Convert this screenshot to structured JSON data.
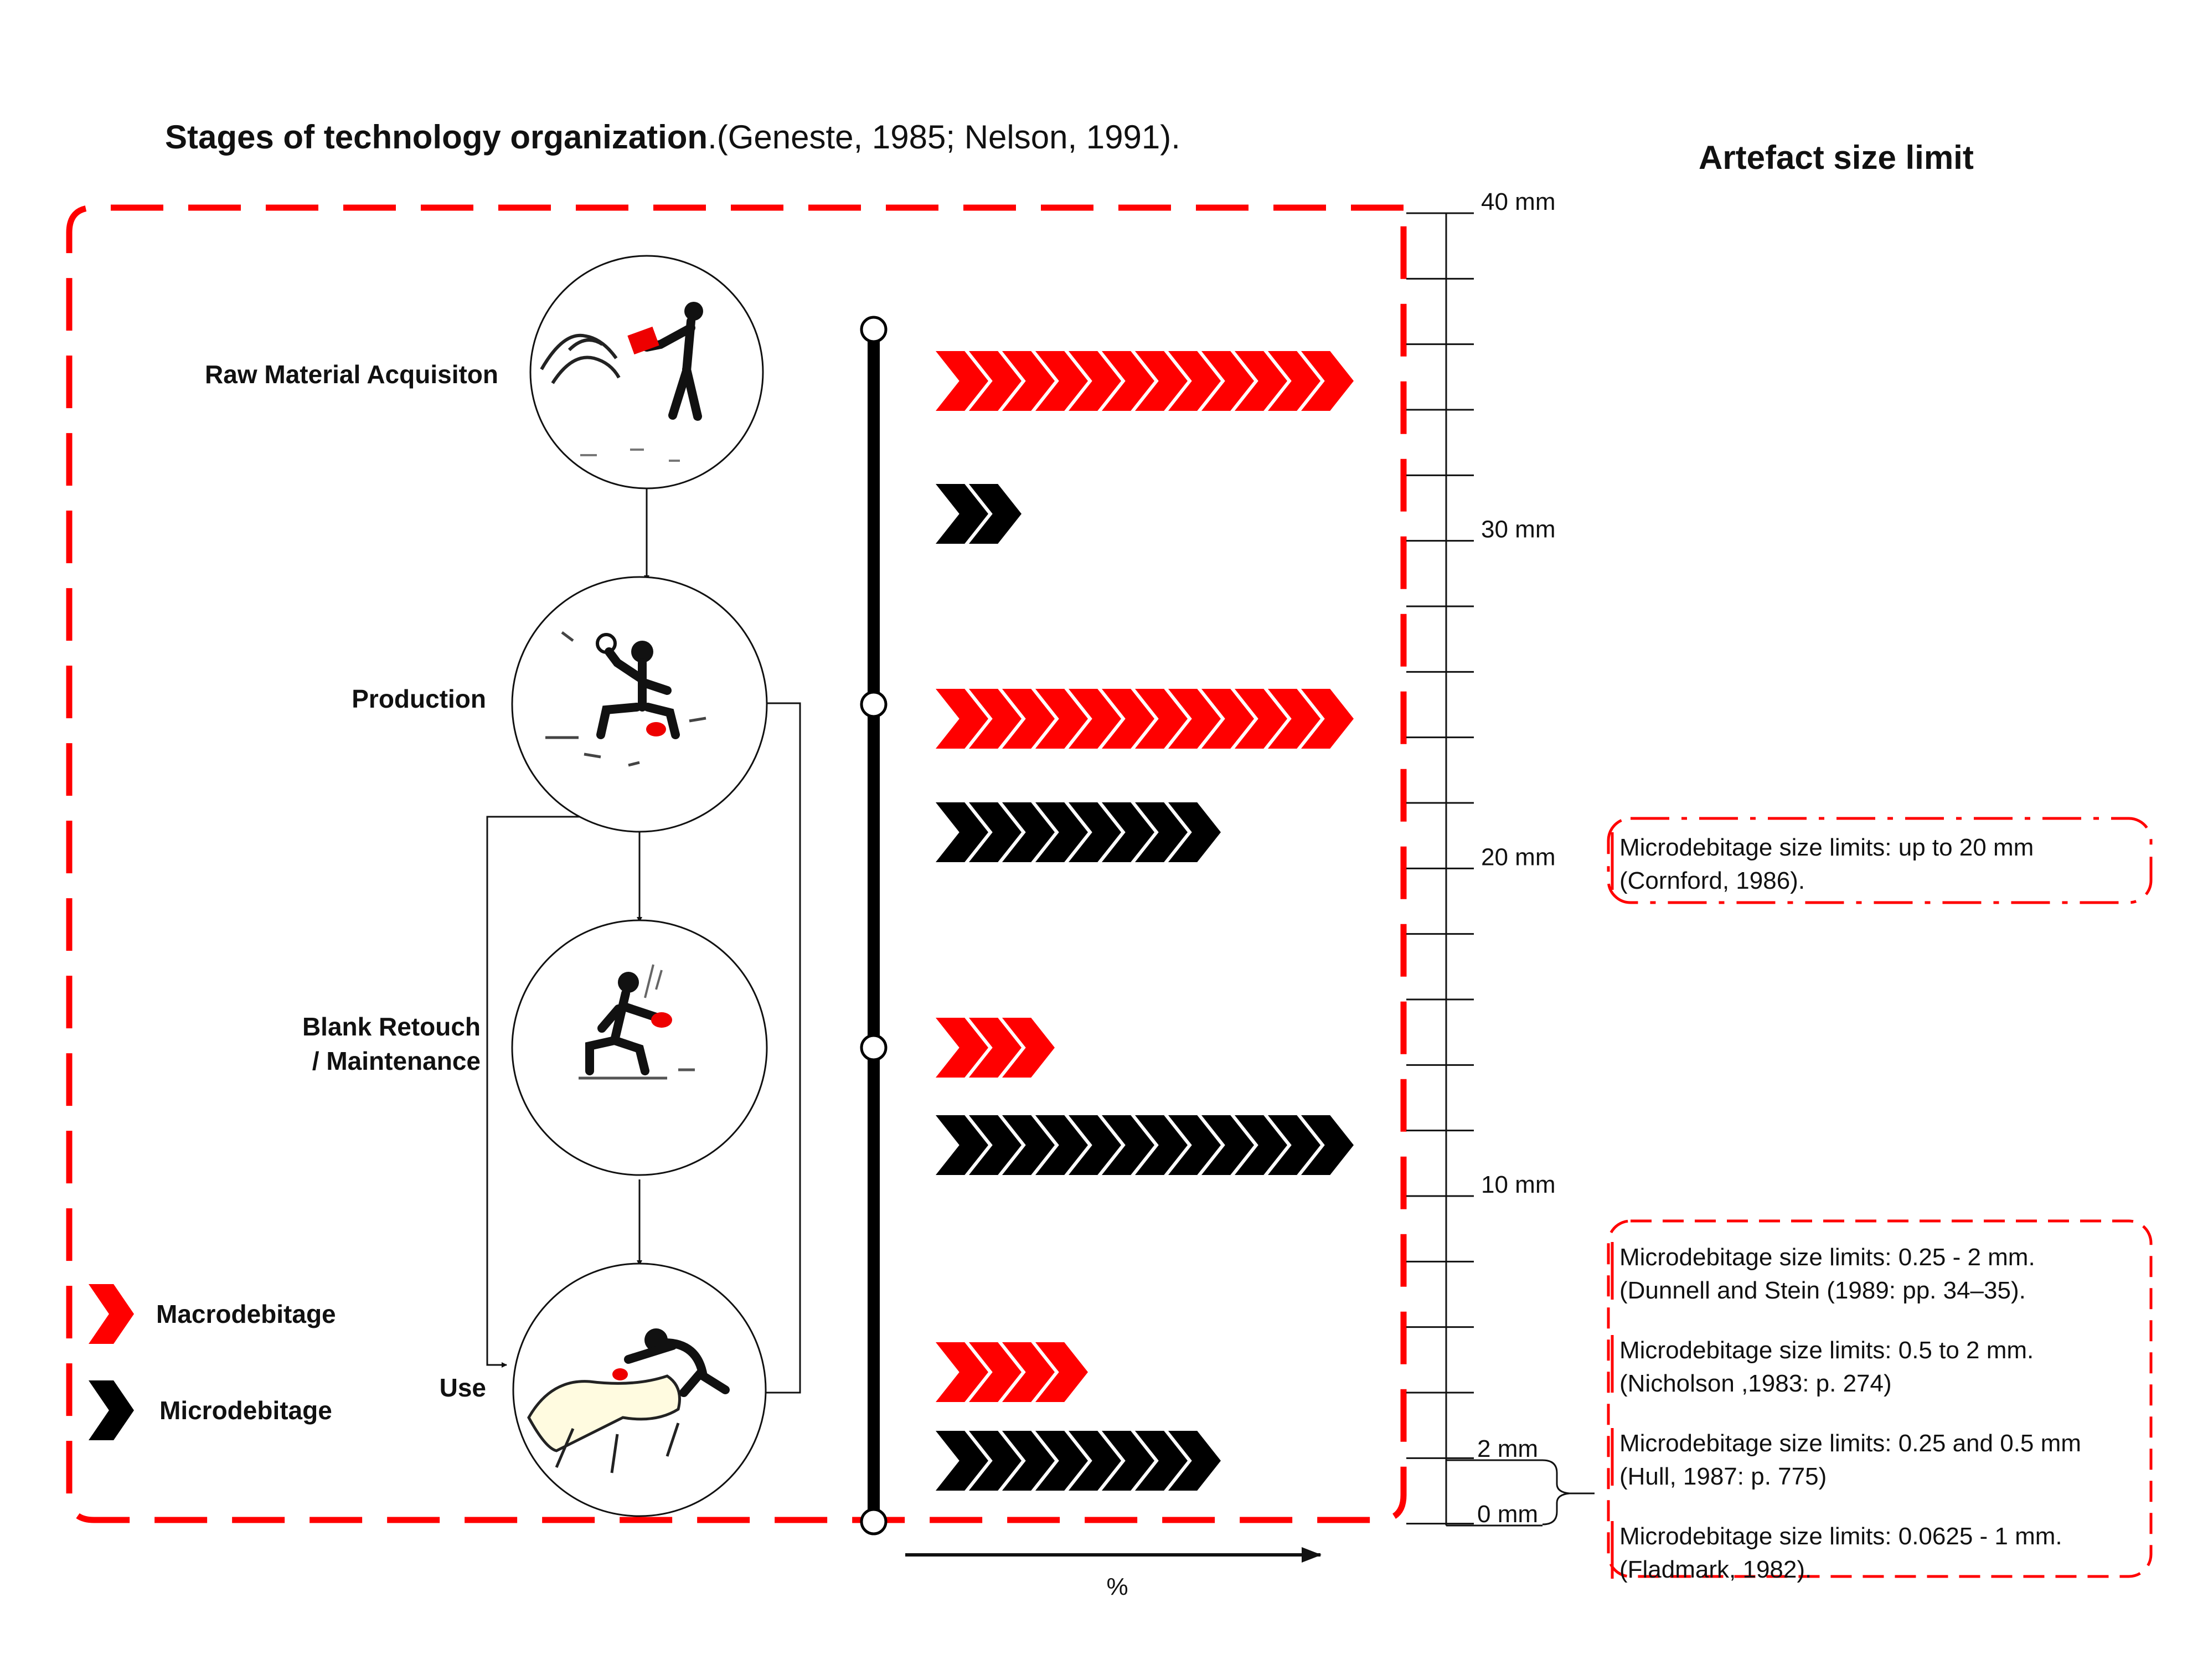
{
  "title": {
    "bold": "Stages of technology organization",
    "rest": ".(Geneste, 1985; Nelson, 1991)."
  },
  "size_heading": "Artefact size limit",
  "stages": [
    {
      "label_lines": [
        "Raw Material Acquisiton"
      ],
      "icon": "gathering-figure-icon"
    },
    {
      "label_lines": [
        "Production"
      ],
      "icon": "knapping-figure-icon"
    },
    {
      "label_lines": [
        "Blank Retouch",
        "/ Maintenance"
      ],
      "icon": "retouching-figure-icon"
    },
    {
      "label_lines": [
        "Use"
      ],
      "icon": "butchering-figure-icon"
    }
  ],
  "legend": [
    {
      "label": "Macrodebitage",
      "color": "#ff0000"
    },
    {
      "label": "Microdebitage",
      "color": "#000000"
    }
  ],
  "percent_axis_label": "%",
  "arrow_rows": [
    {
      "stage": 0,
      "macro": 12,
      "micro": 2
    },
    {
      "stage": 1,
      "macro": 12,
      "micro": 8
    },
    {
      "stage": 2,
      "macro": 3,
      "micro": 12
    },
    {
      "stage": 3,
      "macro": 4,
      "micro": 8
    }
  ],
  "scale": {
    "ticks": [
      {
        "value": 40,
        "label": "40 mm"
      },
      {
        "value": 30,
        "label": "30 mm"
      },
      {
        "value": 20,
        "label": "20 mm"
      },
      {
        "value": 10,
        "label": "10 mm"
      },
      {
        "value": 2,
        "label": "2 mm"
      },
      {
        "value": 0,
        "label": "0 mm"
      }
    ]
  },
  "notes_top": [
    [
      "Microdebitage size limits: up to 20 mm",
      "(Cornford, 1986)."
    ]
  ],
  "notes_bottom": [
    [
      "Microdebitage size limits: 0.25 - 2 mm.",
      "(Dunnell and Stein (1989: pp. 34–35)."
    ],
    [
      "Microdebitage size limits: 0.5 to 2 mm.",
      "(Nicholson ,1983: p. 274)"
    ],
    [
      "Microdebitage size limits: 0.25 and 0.5 mm",
      "(Hull, 1987: p. 775)"
    ],
    [
      "Microdebitage size limits: 0.0625 - 1 mm.",
      "(Fladmark, 1982)."
    ]
  ],
  "colors": {
    "macro": "#ff0000",
    "micro": "#000000",
    "frame": "#ff0000"
  }
}
